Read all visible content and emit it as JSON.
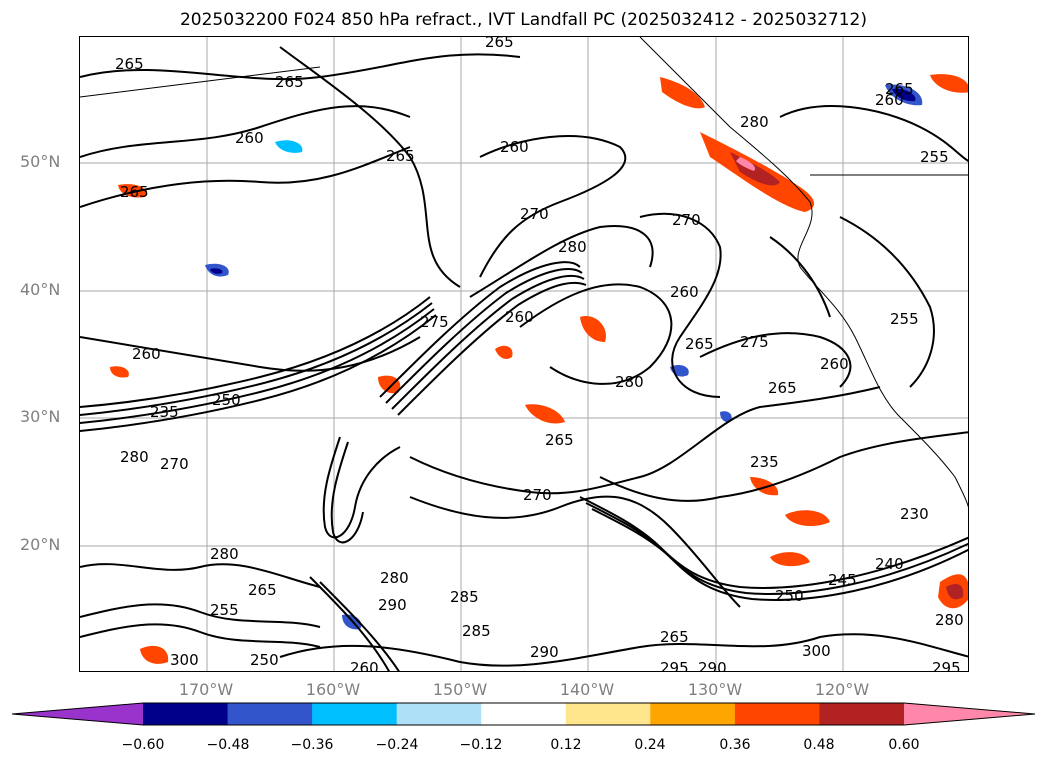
{
  "title": "2025032200 F024 850 hPa refract., IVT Landfall PC (2025032412 - 2025032712)",
  "lat_labels": [
    "50°N",
    "40°N",
    "30°N",
    "20°N"
  ],
  "lon_labels": [
    "170°W",
    "160°W",
    "150°W",
    "140°W",
    "130°W",
    "120°W"
  ],
  "colorbar": {
    "ticks": [
      "−0.60",
      "−0.48",
      "−0.36",
      "−0.24",
      "−0.12",
      "0.12",
      "0.24",
      "0.36",
      "0.48",
      "0.60"
    ],
    "colors": [
      "#9933cc",
      "#00008b",
      "#3355cc",
      "#00bfff",
      "#aee0f8",
      "#ffffff",
      "#ffe68c",
      "#ffa500",
      "#ff4500",
      "#b22222",
      "#ff88aa"
    ]
  },
  "contour_labels": [
    "265",
    "265",
    "265",
    "260",
    "265",
    "260",
    "265",
    "260",
    "255",
    "265",
    "270",
    "280",
    "270",
    "280",
    "260",
    "275",
    "260",
    "275",
    "265",
    "260",
    "260",
    "280",
    "265",
    "255",
    "250",
    "235",
    "280",
    "270",
    "265",
    "270",
    "235",
    "230",
    "240",
    "245",
    "250",
    "280",
    "265",
    "255",
    "250",
    "280",
    "285",
    "285",
    "290",
    "265",
    "295",
    "290",
    "290",
    "300",
    "295",
    "280",
    "300",
    "260"
  ],
  "colors": {
    "frame": "#000000",
    "grid": "#aaaaaa",
    "axis_text": "#808080"
  }
}
